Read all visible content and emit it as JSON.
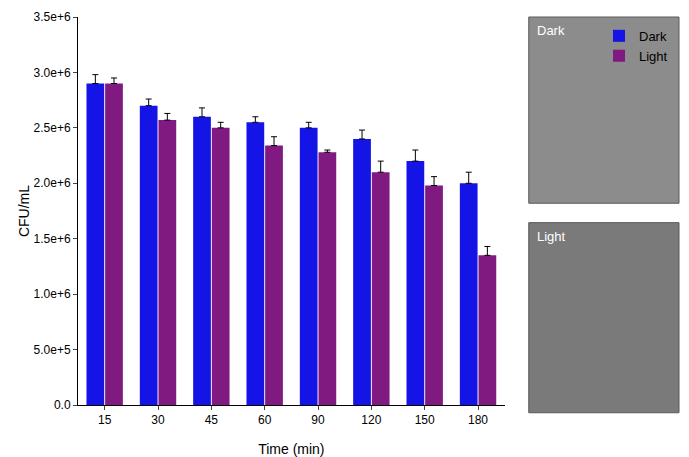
{
  "chart_data": {
    "type": "bar",
    "x_label": "Time (min)",
    "y_label": "CFU/mL",
    "categories": [
      "15",
      "30",
      "45",
      "60",
      "90",
      "120",
      "150",
      "180"
    ],
    "series": [
      {
        "name": "Dark",
        "color": "#1414e6",
        "values": [
          2900000,
          2700000,
          2600000,
          2550000,
          2500000,
          2400000,
          2200000,
          2000000
        ],
        "error": [
          80000,
          60000,
          80000,
          50000,
          50000,
          80000,
          100000,
          100000
        ]
      },
      {
        "name": "Light",
        "color": "#801a80",
        "values": [
          2900000,
          2570000,
          2500000,
          2340000,
          2280000,
          2100000,
          1980000,
          1350000
        ],
        "error": [
          50000,
          60000,
          50000,
          80000,
          20000,
          100000,
          80000,
          80000
        ]
      }
    ],
    "ylim": [
      0,
      3500000
    ],
    "yticks": [
      {
        "value": 0,
        "label": "0.0"
      },
      {
        "value": 500000,
        "label": "5.0e+5"
      },
      {
        "value": 1000000,
        "label": "1.0e+6"
      },
      {
        "value": 1500000,
        "label": "1.5e+6"
      },
      {
        "value": 2000000,
        "label": "2.0e+6"
      },
      {
        "value": 2500000,
        "label": "2.5e+6"
      },
      {
        "value": 3000000,
        "label": "3.0e+6"
      },
      {
        "value": 3500000,
        "label": "3.5e+6"
      }
    ],
    "grid": false,
    "legend": "upper right",
    "annotations": [
      "Dark",
      "Light"
    ]
  }
}
